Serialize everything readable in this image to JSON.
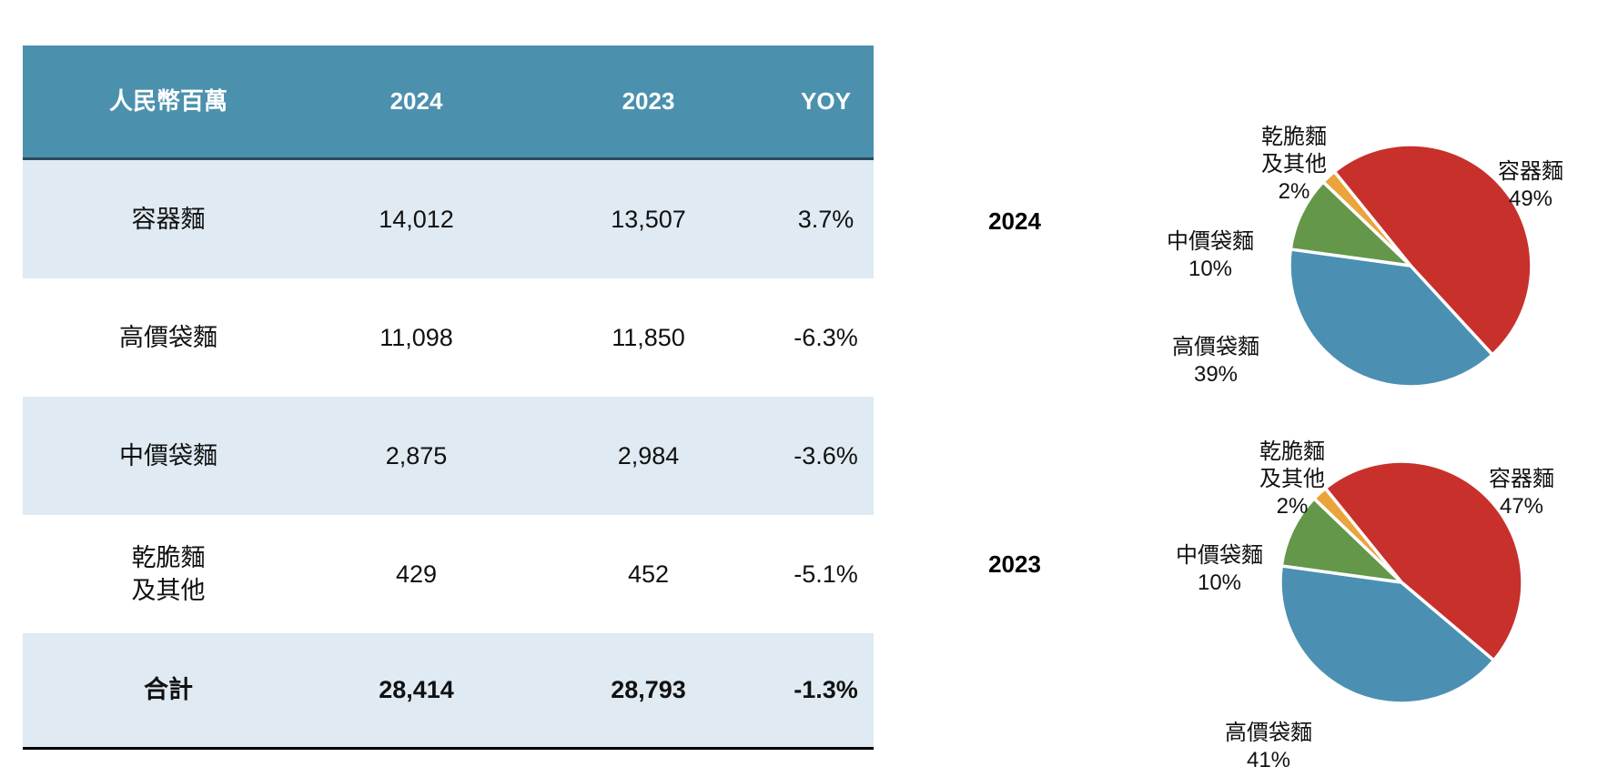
{
  "table": {
    "header": [
      "人民幣百萬",
      "2024",
      "2023",
      "YOY"
    ],
    "rows": [
      {
        "label": "容器麵",
        "y2024": "14,012",
        "y2023": "13,507",
        "yoy": "3.7%"
      },
      {
        "label": "高價袋麵",
        "y2024": "11,098",
        "y2023": "11,850",
        "yoy": "-6.3%"
      },
      {
        "label": "中價袋麵",
        "y2024": "2,875",
        "y2023": "2,984",
        "yoy": "-3.6%"
      },
      {
        "label": "乾脆麵\n及其他",
        "y2024": "429",
        "y2023": "452",
        "yoy": "-5.1%"
      }
    ],
    "total": {
      "label": "合計",
      "y2024": "28,414",
      "y2023": "28,793",
      "yoy": "-1.3%"
    }
  },
  "colors": {
    "header_bg": "#4b91ae",
    "row_alt_bg": "#dfeaf2",
    "header_divider": "#2b4b5f",
    "table_bottom_border": "#000000",
    "pie_red": "#c8302c",
    "pie_blue": "#4b90b2",
    "pie_green": "#64974a",
    "pie_orange": "#e9a43c"
  },
  "chart_data": [
    {
      "type": "pie",
      "title": "2024",
      "categories": [
        "容器麵",
        "高價袋麵",
        "中價袋麵",
        "乾脆麵及其他"
      ],
      "values": [
        49,
        39,
        10,
        2
      ],
      "unit": "%",
      "start_angle": -39,
      "clockwise": true,
      "legend": "none",
      "slices": [
        {
          "name": "容器麵",
          "pct": "49%",
          "value": 49,
          "color": "#c8302c"
        },
        {
          "name": "高價袋麵",
          "pct": "39%",
          "value": 39,
          "color": "#4b90b2"
        },
        {
          "name": "中價袋麵",
          "pct": "10%",
          "value": 10,
          "color": "#64974a"
        },
        {
          "name": "乾脆麵\n及其他",
          "pct": "2%",
          "value": 2,
          "color": "#e9a43c"
        }
      ]
    },
    {
      "type": "pie",
      "title": "2023",
      "categories": [
        "容器麵",
        "高價袋麵",
        "中價袋麵",
        "乾脆麵及其他"
      ],
      "values": [
        47,
        41,
        10,
        2
      ],
      "unit": "%",
      "start_angle": -39,
      "clockwise": true,
      "legend": "none",
      "slices": [
        {
          "name": "容器麵",
          "pct": "47%",
          "value": 47,
          "color": "#c8302c"
        },
        {
          "name": "高價袋麵",
          "pct": "41%",
          "value": 41,
          "color": "#4b90b2"
        },
        {
          "name": "中價袋麵",
          "pct": "10%",
          "value": 10,
          "color": "#64974a"
        },
        {
          "name": "乾脆麵\n及其他",
          "pct": "2%",
          "value": 2,
          "color": "#e9a43c"
        }
      ]
    }
  ]
}
